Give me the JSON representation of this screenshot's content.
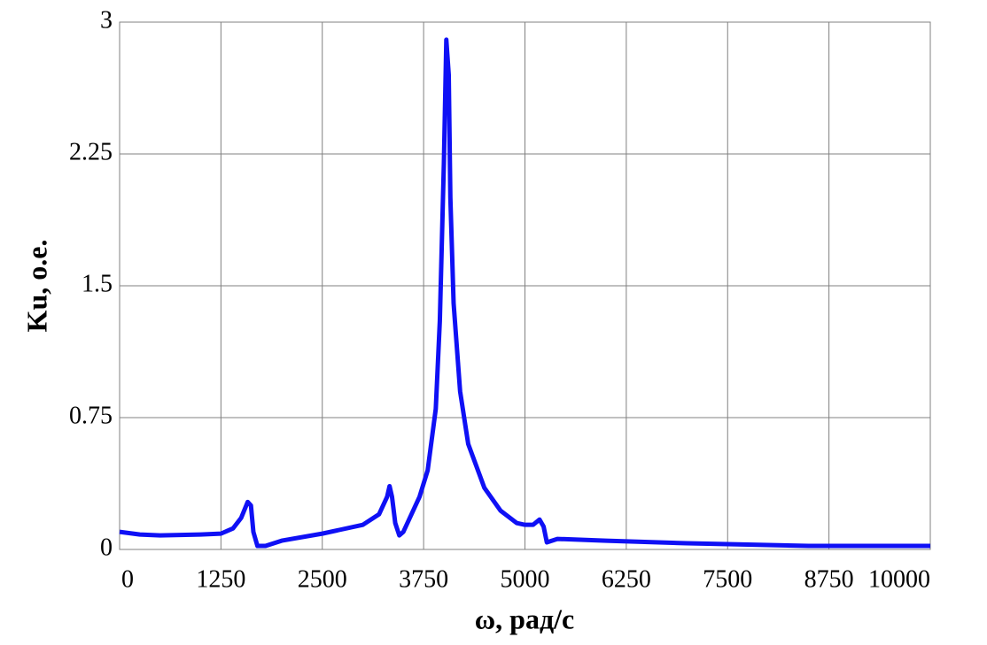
{
  "chart_data": {
    "type": "line",
    "x_label": "ω, рад/с",
    "y_label": "Ku, о.е.",
    "x": [
      0,
      250,
      500,
      1000,
      1250,
      1400,
      1500,
      1580,
      1620,
      1650,
      1700,
      1800,
      2000,
      2500,
      3000,
      3200,
      3300,
      3330,
      3360,
      3400,
      3450,
      3500,
      3700,
      3800,
      3900,
      3950,
      4000,
      4030,
      4060,
      4080,
      4120,
      4200,
      4300,
      4500,
      4700,
      4900,
      5000,
      5100,
      5180,
      5230,
      5270,
      5400,
      6000,
      7000,
      7500,
      8500,
      10000
    ],
    "series": [
      {
        "color": "#0f10f5",
        "values": [
          0.1,
          0.085,
          0.08,
          0.085,
          0.09,
          0.12,
          0.18,
          0.27,
          0.25,
          0.1,
          0.02,
          0.02,
          0.05,
          0.09,
          0.14,
          0.2,
          0.3,
          0.36,
          0.3,
          0.15,
          0.08,
          0.1,
          0.3,
          0.45,
          0.8,
          1.3,
          2.2,
          2.9,
          2.7,
          2.0,
          1.4,
          0.9,
          0.6,
          0.35,
          0.22,
          0.15,
          0.14,
          0.14,
          0.17,
          0.13,
          0.04,
          0.06,
          0.05,
          0.035,
          0.03,
          0.02,
          0.02
        ]
      }
    ],
    "xlim": [
      0,
      10000
    ],
    "xticks": [
      0,
      1250,
      2500,
      3750,
      5000,
      6250,
      7500,
      8750,
      10000
    ],
    "ylim": [
      0,
      3
    ],
    "yticks": [
      0,
      0.75,
      1.5,
      2.25,
      3
    ],
    "grid": true
  }
}
